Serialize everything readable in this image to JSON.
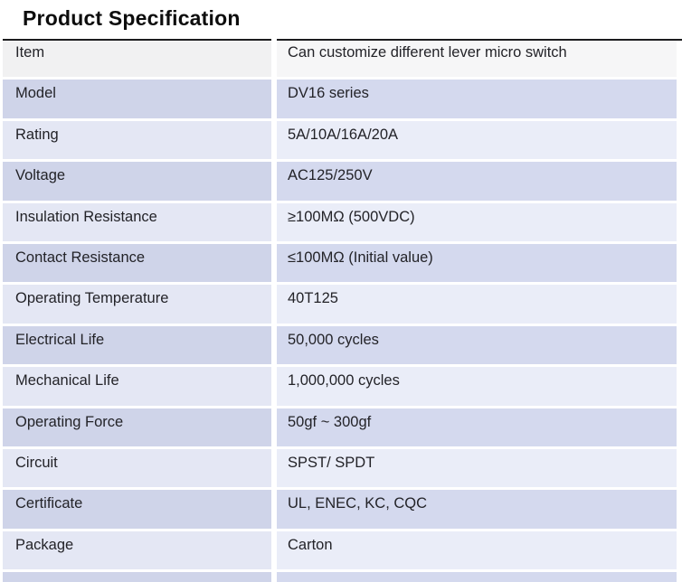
{
  "title": "Product Specification",
  "colors": {
    "top_border": "#1c1c1e",
    "header_left": "#f1f1f2",
    "header_right": "#f6f6f7",
    "even_left": "#cfd4e9",
    "even_right": "#d4d9ee",
    "odd_left": "#e4e7f4",
    "odd_right": "#eaedf8"
  },
  "table": {
    "rows": [
      {
        "item": "Item",
        "value": "Can customize different lever micro switch"
      },
      {
        "item": "Model",
        "value": "DV16 series"
      },
      {
        "item": "Rating",
        "value": "5A/10A/16A/20A"
      },
      {
        "item": "Voltage",
        "value": "AC125/250V"
      },
      {
        "item": "Insulation Resistance",
        "value": "≥100MΩ (500VDC)"
      },
      {
        "item": "Contact Resistance",
        "value": "≤100MΩ (Initial value)"
      },
      {
        "item": "Operating Temperature",
        "value": "40T125"
      },
      {
        "item": "Electrical Life",
        "value": "50,000 cycles"
      },
      {
        "item": "Mechanical Life",
        "value": "1,000,000 cycles"
      },
      {
        "item": "Operating Force",
        "value": "50gf ~ 300gf"
      },
      {
        "item": "Circuit",
        "value": "SPST/ SPDT"
      },
      {
        "item": "Certificate",
        "value": "UL, ENEC, KC, CQC"
      },
      {
        "item": "Package",
        "value": "Carton"
      }
    ]
  }
}
